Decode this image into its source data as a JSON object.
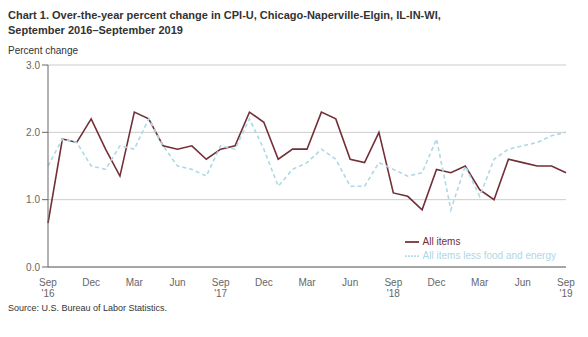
{
  "chart_data": {
    "type": "line",
    "title": "Chart 1. Over-the-year percent change in CPI-U, Chicago-Naperville-Elgin, IL-IN-WI,\nSeptember 2016–September 2019",
    "ylabel": "Percent change",
    "source": "Source: U.S. Bureau of Labor Statistics.",
    "categories": [
      "Sep\n'16",
      null,
      null,
      "Dec",
      null,
      null,
      "Mar",
      null,
      null,
      "Jun",
      null,
      null,
      "Sep\n'17",
      null,
      null,
      "Dec",
      null,
      null,
      "Mar",
      null,
      null,
      "Jun",
      null,
      null,
      "Sep\n'18",
      null,
      null,
      "Dec",
      null,
      null,
      "Mar",
      null,
      null,
      "Jun",
      null,
      null,
      "Sep\n'19"
    ],
    "series": [
      {
        "name": "All items",
        "color": "#722F37",
        "line_style": "solid",
        "values": [
          0.65,
          1.9,
          1.85,
          2.2,
          1.75,
          1.35,
          2.3,
          2.2,
          1.8,
          1.75,
          1.8,
          1.6,
          1.75,
          1.8,
          2.3,
          2.15,
          1.6,
          1.75,
          1.75,
          2.3,
          2.2,
          1.6,
          1.55,
          2.0,
          1.1,
          1.05,
          0.85,
          1.45,
          1.4,
          1.5,
          1.15,
          1.0,
          1.6,
          1.55,
          1.5,
          1.5,
          1.4
        ]
      },
      {
        "name": "All items less food and energy",
        "color": "#ADD8E6",
        "line_style": "dashed",
        "values": [
          1.5,
          1.9,
          1.85,
          1.5,
          1.45,
          1.8,
          1.75,
          2.2,
          1.8,
          1.5,
          1.45,
          1.35,
          1.8,
          1.75,
          2.2,
          1.75,
          1.2,
          1.45,
          1.55,
          1.75,
          1.6,
          1.2,
          1.2,
          1.55,
          1.45,
          1.35,
          1.4,
          1.9,
          0.85,
          1.5,
          1.05,
          1.6,
          1.75,
          1.8,
          1.85,
          1.95,
          2.0
        ]
      }
    ],
    "ylim": [
      0.0,
      3.0
    ],
    "yticks": [
      {
        "value": 0.0,
        "label": "0.0"
      },
      {
        "value": 1.0,
        "label": "1.0"
      },
      {
        "value": 2.0,
        "label": "2.0"
      },
      {
        "value": 3.0,
        "label": "3.0"
      }
    ],
    "grid": true,
    "legend": "lower right"
  }
}
